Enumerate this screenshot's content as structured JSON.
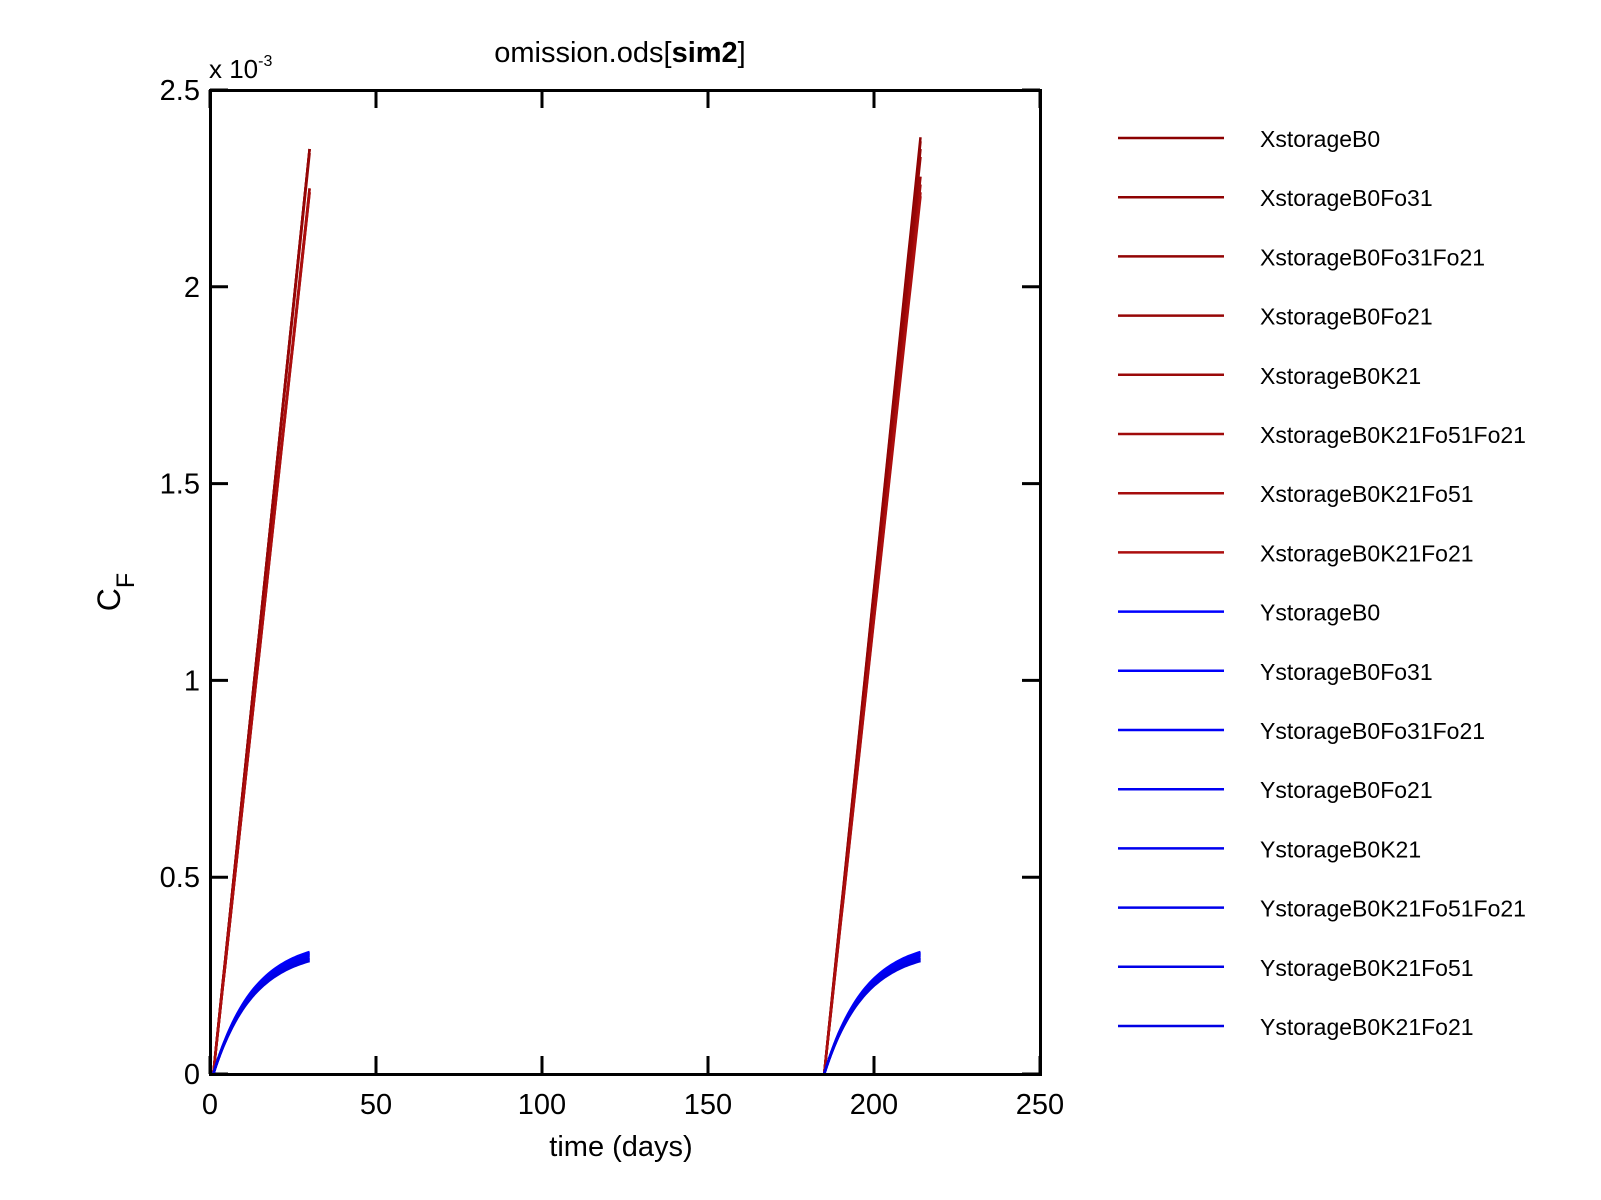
{
  "chart_data": {
    "type": "line",
    "title_main": "omission.ods[",
    "title_bold": "sim2",
    "title_end": "]",
    "xlabel": "time (days)",
    "ylabel_main": "C",
    "ylabel_sub": "F",
    "y_exponent_prefix": "x 10",
    "y_exponent_power": "-3",
    "xlim": [
      0,
      250
    ],
    "ylim": [
      0,
      2.5
    ],
    "x_ticks": [
      0,
      50,
      100,
      150,
      200,
      250
    ],
    "x_tick_labels": [
      "0",
      "50",
      "100",
      "150",
      "200",
      "250"
    ],
    "y_ticks": [
      0,
      0.5,
      1,
      1.5,
      2,
      2.5
    ],
    "y_tick_labels": [
      "0",
      "0.5",
      "1",
      "1.5",
      "2",
      "2.5"
    ],
    "grid": false,
    "legend_position": "outside-right",
    "series": [
      {
        "name": "XstorageB0",
        "color": "#8b0000",
        "kind": "linear",
        "segments": [
          {
            "x0": 1,
            "x1": 30,
            "yend": 2.35
          },
          {
            "x0": 185,
            "x1": 214,
            "yend": 2.38
          }
        ]
      },
      {
        "name": "XstorageB0Fo31",
        "color": "#8e0202",
        "kind": "linear",
        "segments": [
          {
            "x0": 1,
            "x1": 30,
            "yend": 2.35
          },
          {
            "x0": 185,
            "x1": 214,
            "yend": 2.37
          }
        ]
      },
      {
        "name": "XstorageB0Fo31Fo21",
        "color": "#920404",
        "kind": "linear",
        "segments": [
          {
            "x0": 1,
            "x1": 30,
            "yend": 2.35
          },
          {
            "x0": 185,
            "x1": 214,
            "yend": 2.35
          }
        ]
      },
      {
        "name": "XstorageB0Fo21",
        "color": "#960606",
        "kind": "linear",
        "segments": [
          {
            "x0": 1,
            "x1": 30,
            "yend": 2.34
          },
          {
            "x0": 185,
            "x1": 214,
            "yend": 2.33
          }
        ]
      },
      {
        "name": "XstorageB0K21",
        "color": "#9a0808",
        "kind": "linear",
        "segments": [
          {
            "x0": 1,
            "x1": 30,
            "yend": 2.25
          },
          {
            "x0": 185,
            "x1": 214,
            "yend": 2.28
          }
        ]
      },
      {
        "name": "XstorageB0K21Fo51Fo21",
        "color": "#a00a0a",
        "kind": "linear",
        "segments": [
          {
            "x0": 1,
            "x1": 30,
            "yend": 2.25
          },
          {
            "x0": 185,
            "x1": 214,
            "yend": 2.26
          }
        ]
      },
      {
        "name": "XstorageB0K21Fo51",
        "color": "#a60c0c",
        "kind": "linear",
        "segments": [
          {
            "x0": 1,
            "x1": 30,
            "yend": 2.24
          },
          {
            "x0": 185,
            "x1": 214,
            "yend": 2.24
          }
        ]
      },
      {
        "name": "XstorageB0K21Fo21",
        "color": "#ac0e0e",
        "kind": "linear",
        "segments": [
          {
            "x0": 1,
            "x1": 30,
            "yend": 2.24
          },
          {
            "x0": 185,
            "x1": 214,
            "yend": 2.23
          }
        ]
      },
      {
        "name": "YstorageB0",
        "color": "#0000ff",
        "kind": "saturating",
        "segments": [
          {
            "x0": 1,
            "x1": 30,
            "yend": 0.31
          },
          {
            "x0": 185,
            "x1": 214,
            "yend": 0.31
          }
        ]
      },
      {
        "name": "YstorageB0Fo31",
        "color": "#0000fb",
        "kind": "saturating",
        "segments": [
          {
            "x0": 1,
            "x1": 30,
            "yend": 0.307
          },
          {
            "x0": 185,
            "x1": 214,
            "yend": 0.307
          }
        ]
      },
      {
        "name": "YstorageB0Fo31Fo21",
        "color": "#0000f7",
        "kind": "saturating",
        "segments": [
          {
            "x0": 1,
            "x1": 30,
            "yend": 0.304
          },
          {
            "x0": 185,
            "x1": 214,
            "yend": 0.304
          }
        ]
      },
      {
        "name": "YstorageB0Fo21",
        "color": "#0000f3",
        "kind": "saturating",
        "segments": [
          {
            "x0": 1,
            "x1": 30,
            "yend": 0.3
          },
          {
            "x0": 185,
            "x1": 214,
            "yend": 0.3
          }
        ]
      },
      {
        "name": "YstorageB0K21",
        "color": "#0000ef",
        "kind": "saturating",
        "segments": [
          {
            "x0": 1,
            "x1": 30,
            "yend": 0.296
          },
          {
            "x0": 185,
            "x1": 214,
            "yend": 0.296
          }
        ]
      },
      {
        "name": "YstorageB0K21Fo51Fo21",
        "color": "#0000eb",
        "kind": "saturating",
        "segments": [
          {
            "x0": 1,
            "x1": 30,
            "yend": 0.293
          },
          {
            "x0": 185,
            "x1": 214,
            "yend": 0.293
          }
        ]
      },
      {
        "name": "YstorageB0K21Fo51",
        "color": "#0000e7",
        "kind": "saturating",
        "segments": [
          {
            "x0": 1,
            "x1": 30,
            "yend": 0.29
          },
          {
            "x0": 185,
            "x1": 214,
            "yend": 0.29
          }
        ]
      },
      {
        "name": "YstorageB0K21Fo21",
        "color": "#0000e3",
        "kind": "saturating",
        "segments": [
          {
            "x0": 1,
            "x1": 30,
            "yend": 0.287
          },
          {
            "x0": 185,
            "x1": 214,
            "yend": 0.287
          }
        ]
      }
    ]
  }
}
